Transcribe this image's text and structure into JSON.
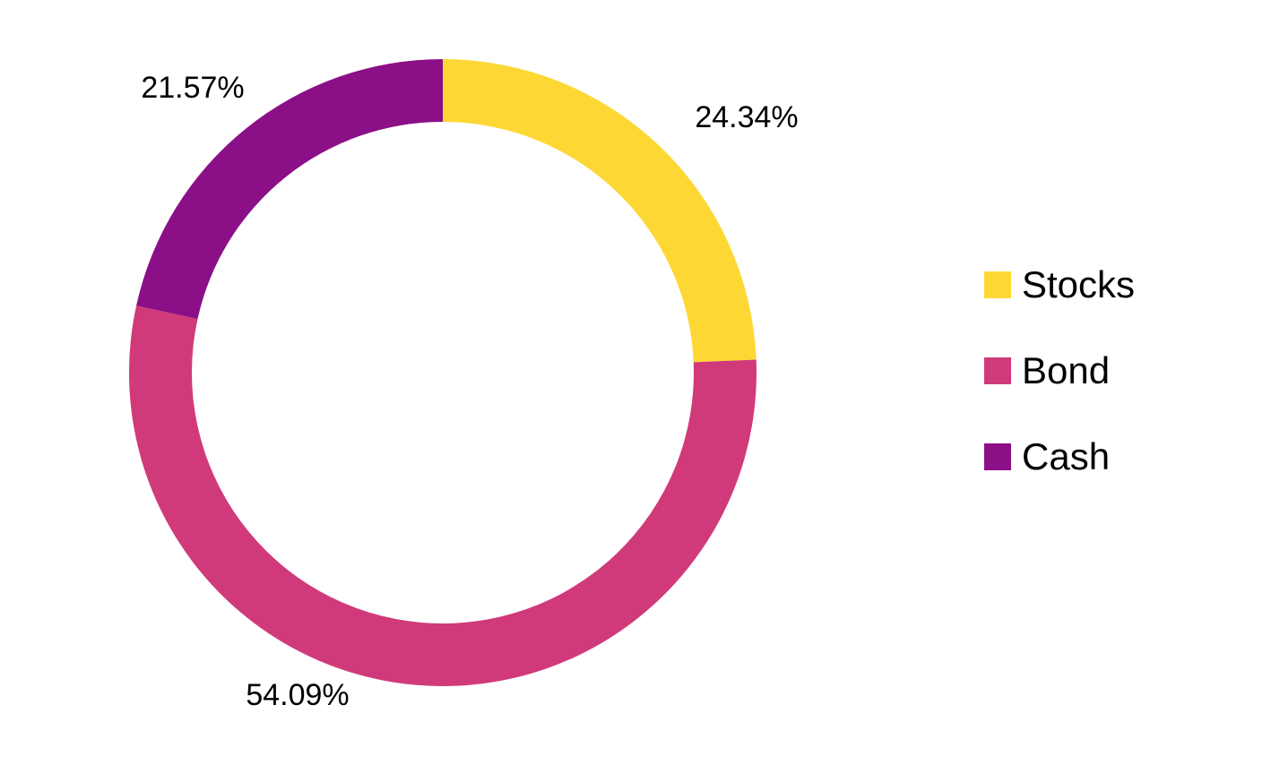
{
  "chart_data": {
    "type": "pie",
    "variant": "donut",
    "categories": [
      "Stocks",
      "Bond",
      "Cash"
    ],
    "values": [
      24.34,
      54.09,
      21.57
    ],
    "data_labels": [
      "24.34%",
      "54.09%",
      "21.57%"
    ],
    "colors": [
      "#FDD835",
      "#D13A7A",
      "#8B0F87"
    ],
    "unit": "%",
    "title": "",
    "legend_position": "right",
    "start_angle": "top",
    "direction": "clockwise"
  },
  "legend": {
    "items": [
      {
        "label": "Stocks",
        "color": "#FDD835"
      },
      {
        "label": "Bond",
        "color": "#D13A7A"
      },
      {
        "label": "Cash",
        "color": "#8B0F87"
      }
    ]
  }
}
